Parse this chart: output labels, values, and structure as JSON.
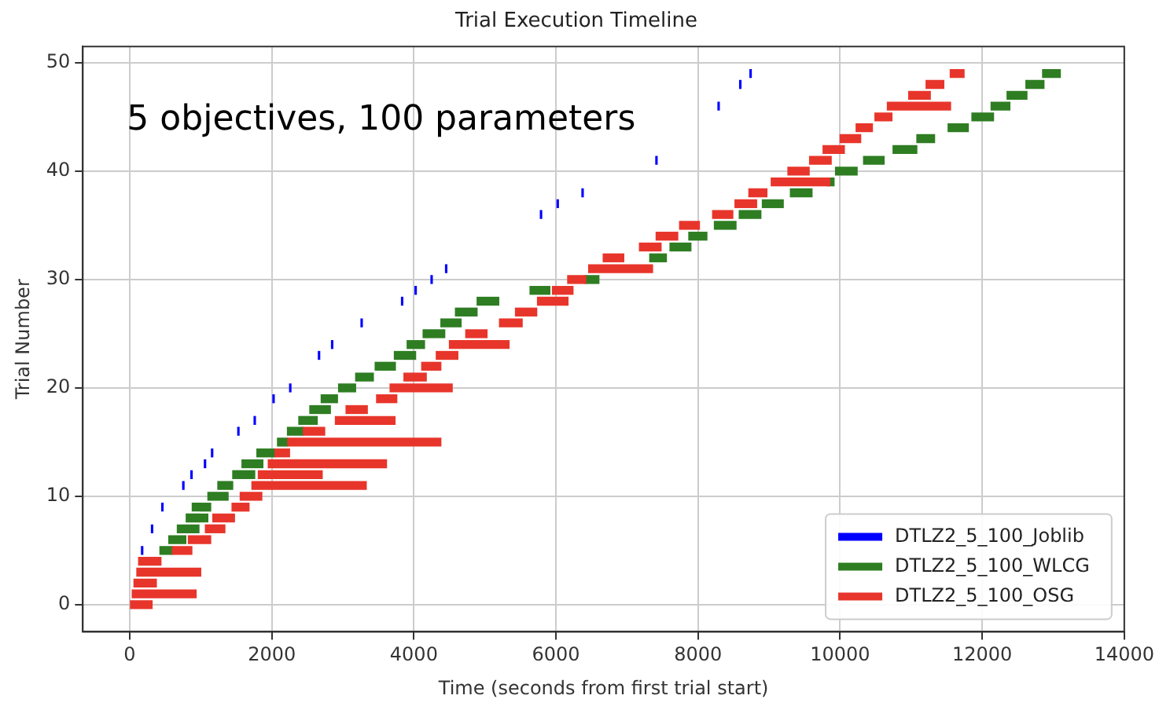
{
  "chart_data": {
    "type": "bar",
    "orientation": "horizontal",
    "title": "Trial Execution Timeline",
    "xlabel": "Time (seconds from first trial start)",
    "ylabel": "Trial Number",
    "annotations": [
      "5 objectives, 100 parameters"
    ],
    "xlim": [
      -660,
      14000
    ],
    "xticks": [
      0,
      2000,
      4000,
      6000,
      8000,
      10000,
      12000,
      14000
    ],
    "ylim": [
      -2.5,
      51.5
    ],
    "yticks": [
      0,
      10,
      20,
      30,
      40,
      50
    ],
    "grid": true,
    "legend": "bottom right",
    "series": [
      {
        "name": "DTLZ2_5_100_Joblib",
        "color": "#0000ff",
        "x": [
          5,
          7,
          9,
          11,
          12,
          13,
          14,
          16,
          17,
          19,
          20,
          23,
          24,
          26,
          28,
          29,
          30,
          31,
          36,
          37,
          38,
          41,
          46,
          48,
          49
        ],
        "base": [
          165,
          305,
          450,
          745,
          860,
          1050,
          1150,
          1520,
          1750,
          2015,
          2250,
          2655,
          2840,
          3255,
          3825,
          4015,
          4240,
          4445,
          5780,
          6015,
          6365,
          7405,
          8280,
          8585,
          8730
        ],
        "values": [
          20,
          20,
          20,
          20,
          20,
          20,
          20,
          20,
          20,
          20,
          20,
          20,
          20,
          20,
          20,
          20,
          20,
          20,
          20,
          20,
          20,
          20,
          20,
          20,
          20
        ]
      },
      {
        "name": "DTLZ2_5_100_WLCG",
        "color": "#2e7d22",
        "x": [
          5,
          6,
          7,
          8,
          9,
          10,
          11,
          12,
          13,
          14,
          15,
          16,
          17,
          18,
          19,
          20,
          21,
          22,
          23,
          24,
          25,
          26,
          27,
          28,
          29,
          30,
          32,
          33,
          34,
          35,
          36,
          37,
          38,
          39,
          40,
          41,
          42,
          43,
          44,
          45,
          46,
          47,
          48,
          49
        ],
        "base": [
          425,
          550,
          670,
          795,
          880,
          1100,
          1240,
          1450,
          1580,
          1790,
          2080,
          2220,
          2380,
          2535,
          2695,
          2940,
          3180,
          3455,
          3725,
          3905,
          4130,
          4380,
          4585,
          4890,
          5635,
          6410,
          7320,
          7605,
          7870,
          8230,
          8580,
          8905,
          9300,
          9820,
          9935,
          10330,
          10745,
          11080,
          11520,
          11855,
          12125,
          12350,
          12615,
          12850
        ],
        "values": [
          175,
          240,
          305,
          305,
          260,
          285,
          210,
          310,
          295,
          255,
          145,
          225,
          260,
          290,
          230,
          240,
          250,
          285,
          300,
          245,
          305,
          285,
          305,
          305,
          280,
          195,
          235,
          295,
          255,
          305,
          305,
          295,
          305,
          95,
          305,
          290,
          335,
          250,
          285,
          305,
          265,
          280,
          255,
          250
        ]
      },
      {
        "name": "DTLZ2_5_100_OSG",
        "color": "#e8352b",
        "x": [
          0,
          1,
          2,
          3,
          4,
          5,
          6,
          7,
          8,
          9,
          10,
          11,
          12,
          13,
          14,
          15,
          16,
          17,
          18,
          19,
          20,
          21,
          22,
          23,
          24,
          25,
          26,
          27,
          28,
          29,
          30,
          31,
          32,
          33,
          34,
          35,
          36,
          37,
          38,
          39,
          40,
          41,
          42,
          43,
          44,
          45,
          46,
          47,
          48,
          49
        ],
        "base": [
          0,
          35,
          60,
          100,
          125,
          600,
          825,
          1065,
          1170,
          1440,
          1555,
          1720,
          1810,
          1950,
          2045,
          2225,
          2445,
          2895,
          3045,
          3475,
          3665,
          3860,
          4110,
          4315,
          4500,
          4730,
          5205,
          5430,
          5740,
          5950,
          6165,
          6460,
          6665,
          7175,
          7410,
          7740,
          8205,
          8520,
          8715,
          9030,
          9265,
          9570,
          9760,
          10000,
          10225,
          10490,
          10665,
          10965,
          11210,
          11550
        ],
        "values": [
          315,
          900,
          315,
          900,
          315,
          275,
          315,
          275,
          305,
          240,
          305,
          1610,
          900,
          1665,
          205,
          2155,
          300,
          840,
          300,
          285,
          875,
          315,
          270,
          305,
          840,
          300,
          320,
          300,
          430,
          290,
          255,
          900,
          290,
          305,
          305,
          280,
          285,
          305,
          255,
          825,
          300,
          305,
          300,
          290,
          230,
          240,
          890,
          305,
          250,
          195
        ]
      }
    ]
  }
}
